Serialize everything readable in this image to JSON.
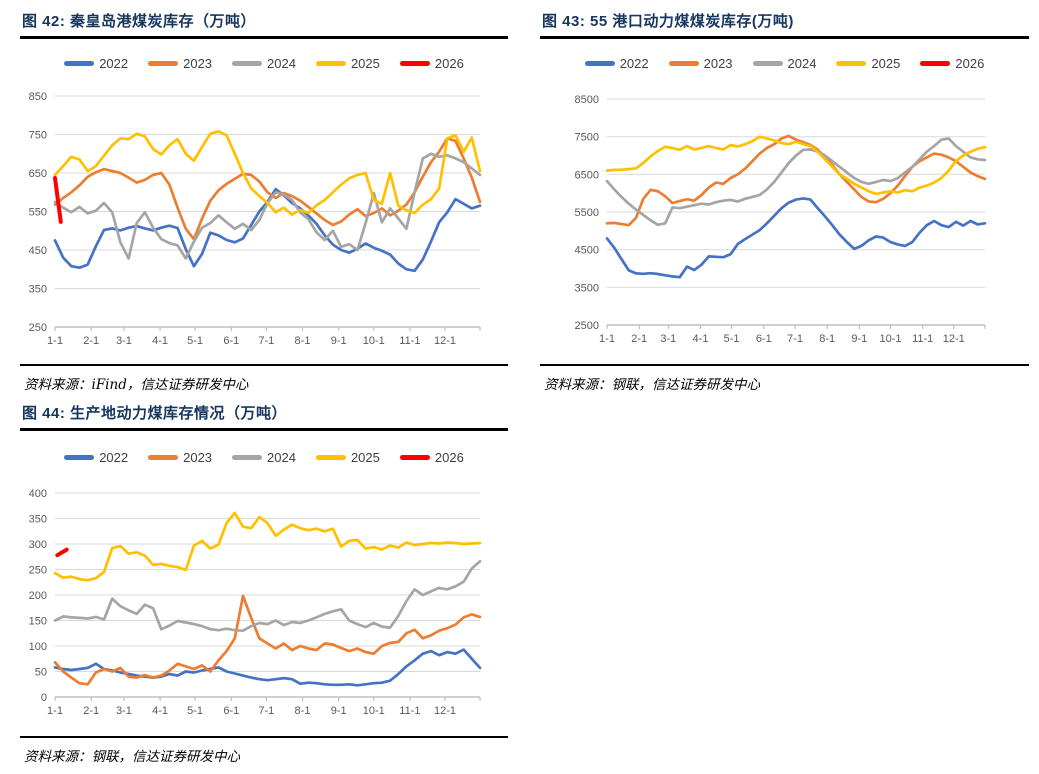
{
  "colors": {
    "2022": "#4472C4",
    "2023": "#ED7D31",
    "2024": "#A5A5A5",
    "2025": "#FFC000",
    "2026": "#FF0000",
    "title": "#17365D",
    "gridline": "#D9D9D9",
    "axis": "#BFBFBF",
    "tick_text": "#595959"
  },
  "legend_years": [
    "2022",
    "2023",
    "2024",
    "2025",
    "2026"
  ],
  "chart_data": [
    {
      "id": "fig42",
      "type": "line",
      "title": "图 42: 秦皇岛港煤炭库存（万吨）",
      "source": "资料来源：iFind，信达证券研发中心",
      "unit": "万吨",
      "y_min": 250,
      "y_max": 850,
      "y_step": 100,
      "y_tick_labels": [
        "250",
        "350",
        "450",
        "550",
        "650",
        "750",
        "850"
      ],
      "x_tick_labels": [
        "1-1",
        "2-1",
        "3-1",
        "4-1",
        "5-1",
        "6-1",
        "7-1",
        "8-1",
        "9-1",
        "10-1",
        "11-1",
        "12-1"
      ],
      "x_tick_days": [
        0,
        31,
        59,
        90,
        120,
        151,
        181,
        212,
        243,
        273,
        304,
        334
      ],
      "grid": true,
      "legend_position": "top",
      "series": [
        {
          "name": "2022",
          "start_day": 0,
          "end_day": 364,
          "values": [
            475,
            430,
            408,
            404,
            412,
            460,
            502,
            506,
            501,
            508,
            512,
            506,
            501,
            508,
            513,
            507,
            452,
            408,
            440,
            495,
            488,
            476,
            470,
            480,
            515,
            550,
            575,
            608,
            592,
            572,
            558,
            540,
            518,
            488,
            464,
            450,
            443,
            453,
            467,
            456,
            448,
            438,
            415,
            400,
            396,
            425,
            472,
            522,
            548,
            582,
            570,
            558,
            565
          ]
        },
        {
          "name": "2023",
          "start_day": 0,
          "end_day": 364,
          "values": [
            568,
            585,
            600,
            618,
            640,
            652,
            660,
            655,
            650,
            638,
            625,
            632,
            645,
            650,
            620,
            560,
            505,
            478,
            532,
            578,
            605,
            622,
            635,
            648,
            645,
            628,
            600,
            585,
            598,
            590,
            578,
            562,
            545,
            528,
            515,
            524,
            542,
            556,
            538,
            546,
            558,
            540,
            552,
            568,
            600,
            640,
            678,
            705,
            740,
            733,
            688,
            638,
            575
          ]
        },
        {
          "name": "2024",
          "start_day": 0,
          "end_day": 364,
          "values": [
            575,
            560,
            548,
            562,
            545,
            552,
            572,
            548,
            470,
            428,
            520,
            548,
            508,
            478,
            468,
            462,
            428,
            472,
            508,
            520,
            540,
            522,
            505,
            518,
            502,
            528,
            572,
            600,
            594,
            580,
            548,
            530,
            496,
            476,
            500,
            458,
            465,
            450,
            520,
            598,
            522,
            558,
            532,
            505,
            600,
            688,
            700,
            692,
            696,
            688,
            678,
            662,
            645
          ]
        },
        {
          "name": "2025",
          "start_day": 0,
          "end_day": 364,
          "values": [
            645,
            668,
            692,
            685,
            655,
            668,
            695,
            722,
            740,
            738,
            752,
            745,
            712,
            698,
            722,
            738,
            700,
            682,
            718,
            752,
            758,
            748,
            700,
            650,
            610,
            590,
            572,
            548,
            560,
            542,
            554,
            546,
            566,
            580,
            600,
            620,
            636,
            645,
            650,
            580,
            570,
            650,
            565,
            553,
            546,
            568,
            582,
            610,
            740,
            748,
            705,
            742,
            655
          ]
        },
        {
          "name": "2026",
          "start_day": 0,
          "end_day": 5,
          "values": [
            637,
            580,
            523
          ]
        }
      ]
    },
    {
      "id": "fig43",
      "type": "line",
      "title": "图 43: 55 港口动力煤煤炭库存(万吨)",
      "source": "资料来源：钢联，信达证券研发中心",
      "unit": "万吨",
      "y_min": 2500,
      "y_max": 8500,
      "y_step": 1000,
      "y_tick_labels": [
        "2500",
        "3500",
        "4500",
        "5500",
        "6500",
        "7500",
        "8500"
      ],
      "x_tick_labels": [
        "1-1",
        "2-1",
        "3-1",
        "4-1",
        "5-1",
        "6-1",
        "7-1",
        "8-1",
        "9-1",
        "10-1",
        "11-1",
        "12-1"
      ],
      "x_tick_days": [
        0,
        31,
        59,
        90,
        120,
        151,
        181,
        212,
        243,
        273,
        304,
        334
      ],
      "grid": true,
      "legend_position": "top",
      "series": [
        {
          "name": "2022",
          "start_day": 0,
          "end_day": 364,
          "values": [
            4800,
            4550,
            4250,
            3950,
            3870,
            3860,
            3875,
            3855,
            3820,
            3790,
            3770,
            4050,
            3960,
            4100,
            4320,
            4310,
            4300,
            4380,
            4650,
            4780,
            4900,
            5020,
            5200,
            5400,
            5600,
            5750,
            5830,
            5860,
            5830,
            5600,
            5380,
            5150,
            4900,
            4700,
            4520,
            4600,
            4750,
            4850,
            4820,
            4700,
            4640,
            4600,
            4700,
            4950,
            5150,
            5260,
            5150,
            5100,
            5240,
            5140,
            5260,
            5170,
            5200
          ]
        },
        {
          "name": "2023",
          "start_day": 0,
          "end_day": 364,
          "values": [
            5200,
            5210,
            5180,
            5150,
            5350,
            5850,
            6090,
            6050,
            5920,
            5740,
            5790,
            5840,
            5800,
            5950,
            6150,
            6280,
            6250,
            6400,
            6500,
            6650,
            6850,
            7050,
            7200,
            7300,
            7450,
            7520,
            7420,
            7350,
            7280,
            7150,
            6950,
            6750,
            6500,
            6300,
            6100,
            5900,
            5780,
            5760,
            5850,
            6000,
            6200,
            6450,
            6700,
            6850,
            6950,
            7050,
            7020,
            6950,
            6850,
            6700,
            6550,
            6450,
            6380
          ]
        },
        {
          "name": "2024",
          "start_day": 0,
          "end_day": 364,
          "values": [
            6320,
            6100,
            5900,
            5720,
            5560,
            5420,
            5280,
            5160,
            5200,
            5620,
            5600,
            5640,
            5680,
            5720,
            5700,
            5760,
            5800,
            5820,
            5780,
            5850,
            5900,
            5950,
            6100,
            6300,
            6550,
            6800,
            7000,
            7150,
            7160,
            7100,
            7000,
            6850,
            6700,
            6550,
            6400,
            6300,
            6250,
            6300,
            6350,
            6320,
            6400,
            6550,
            6700,
            6900,
            7100,
            7250,
            7420,
            7450,
            7250,
            7100,
            6950,
            6900,
            6880
          ]
        },
        {
          "name": "2025",
          "start_day": 0,
          "end_day": 364,
          "values": [
            6600,
            6620,
            6620,
            6640,
            6660,
            6800,
            6980,
            7120,
            7230,
            7200,
            7150,
            7250,
            7160,
            7200,
            7250,
            7200,
            7160,
            7280,
            7240,
            7300,
            7380,
            7500,
            7450,
            7400,
            7330,
            7300,
            7370,
            7300,
            7250,
            7100,
            6900,
            6700,
            6500,
            6380,
            6250,
            6150,
            6050,
            5980,
            6020,
            6050,
            6020,
            6080,
            6050,
            6150,
            6200,
            6280,
            6400,
            6600,
            6850,
            7000,
            7100,
            7180,
            7220
          ]
        },
        {
          "name": "2026",
          "start_day": 0,
          "end_day": 0,
          "values": []
        }
      ]
    },
    {
      "id": "fig44",
      "type": "line",
      "title": "图 44: 生产地动力煤库存情况（万吨）",
      "source": "资料来源：钢联，信达证券研发中心",
      "unit": "万吨",
      "y_min": 0,
      "y_max": 400,
      "y_step": 50,
      "y_tick_labels": [
        "0",
        "50",
        "100",
        "150",
        "200",
        "250",
        "300",
        "350",
        "400"
      ],
      "x_tick_labels": [
        "1-1",
        "2-1",
        "3-1",
        "4-1",
        "5-1",
        "6-1",
        "7-1",
        "8-1",
        "9-1",
        "10-1",
        "11-1",
        "12-1"
      ],
      "x_tick_days": [
        0,
        31,
        59,
        90,
        120,
        151,
        181,
        212,
        243,
        273,
        304,
        334
      ],
      "grid": true,
      "legend_position": "top",
      "series": [
        {
          "name": "2022",
          "start_day": 0,
          "end_day": 364,
          "values": [
            58,
            55,
            53,
            55,
            57,
            65,
            55,
            52,
            48,
            45,
            42,
            40,
            38,
            40,
            45,
            42,
            50,
            48,
            52,
            55,
            58,
            50,
            46,
            42,
            38,
            35,
            33,
            35,
            37,
            35,
            26,
            28,
            27,
            25,
            24,
            24,
            25,
            23,
            25,
            27,
            28,
            32,
            45,
            60,
            72,
            85,
            90,
            82,
            88,
            85,
            93,
            75,
            57
          ]
        },
        {
          "name": "2023",
          "start_day": 0,
          "end_day": 364,
          "values": [
            68,
            50,
            38,
            27,
            25,
            48,
            55,
            50,
            57,
            40,
            38,
            43,
            38,
            42,
            52,
            65,
            60,
            55,
            62,
            50,
            72,
            90,
            115,
            198,
            155,
            115,
            105,
            95,
            105,
            92,
            100,
            95,
            92,
            105,
            103,
            96,
            90,
            95,
            88,
            85,
            100,
            106,
            108,
            125,
            132,
            115,
            121,
            130,
            135,
            142,
            156,
            162,
            157
          ]
        },
        {
          "name": "2024",
          "start_day": 0,
          "end_day": 364,
          "values": [
            150,
            158,
            156,
            155,
            154,
            157,
            152,
            193,
            178,
            170,
            163,
            181,
            174,
            133,
            140,
            149,
            146,
            143,
            139,
            133,
            131,
            134,
            131,
            130,
            139,
            145,
            143,
            150,
            141,
            147,
            145,
            150,
            156,
            163,
            168,
            172,
            150,
            143,
            137,
            145,
            138,
            136,
            159,
            188,
            211,
            200,
            207,
            214,
            211,
            217,
            226,
            252,
            266
          ]
        },
        {
          "name": "2025",
          "start_day": 0,
          "end_day": 364,
          "values": [
            243,
            234,
            236,
            231,
            229,
            233,
            245,
            292,
            296,
            281,
            284,
            277,
            259,
            261,
            257,
            255,
            249,
            297,
            306,
            291,
            299,
            341,
            361,
            334,
            331,
            353,
            341,
            316,
            328,
            338,
            331,
            327,
            330,
            325,
            330,
            295,
            306,
            308,
            291,
            294,
            289,
            297,
            293,
            303,
            298,
            300,
            302,
            301,
            303,
            302,
            300,
            301,
            302
          ]
        },
        {
          "name": "2026",
          "start_day": 2,
          "end_day": 10,
          "values": [
            278,
            289
          ]
        }
      ]
    }
  ]
}
